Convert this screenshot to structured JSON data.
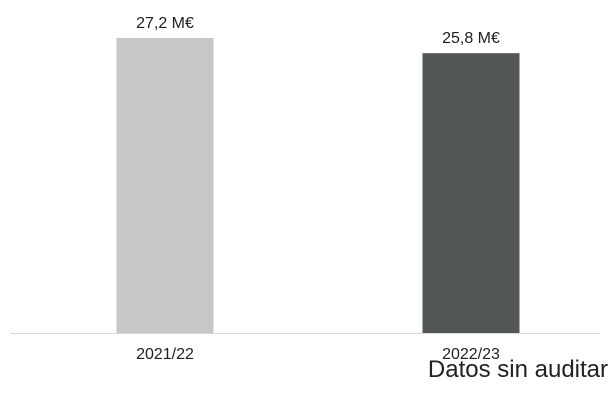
{
  "chart_data": {
    "type": "bar",
    "categories": [
      "2021/22",
      "2022/23"
    ],
    "values": [
      27.2,
      25.8
    ],
    "value_labels": [
      "27,2 M€",
      "25,8 M€"
    ],
    "ylim": [
      0,
      27.2
    ],
    "grid": false,
    "legend": "none",
    "colors": [
      "#c8c7c5",
      "#535656"
    ],
    "axis_color": "#d9d9d9"
  },
  "footnote": "Datos sin auditar"
}
